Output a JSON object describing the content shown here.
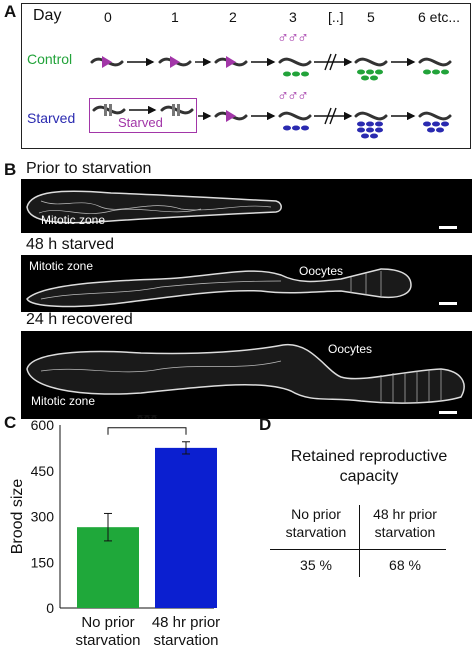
{
  "panel_a": {
    "letter": "A",
    "day_label": "Day",
    "days": [
      "0",
      "1",
      "2",
      "3",
      "[..]",
      "5",
      "6 etc..."
    ],
    "rows": [
      {
        "label": "Control",
        "color": "#22a33a"
      },
      {
        "label": "Starved",
        "color": "#2a2ab0"
      }
    ],
    "starved_box_label": "Starved",
    "accent_color": "#a236a8",
    "male_symbols": "♂♂♂"
  },
  "panel_b": {
    "letter": "B",
    "images": [
      {
        "title": "Prior to starvation",
        "labels": [
          "Mitotic zone"
        ]
      },
      {
        "title": "48 h starved",
        "labels": [
          "Mitotic zone",
          "Oocytes"
        ]
      },
      {
        "title": "24 h recovered",
        "labels": [
          "Oocytes",
          "Mitotic zone"
        ]
      }
    ]
  },
  "panel_c": {
    "letter": "C",
    "significance": "***",
    "chart_data": {
      "type": "bar",
      "categories": [
        "No prior starvation",
        "48 hr prior starvation"
      ],
      "category_lines": [
        [
          "No prior",
          "starvation"
        ],
        [
          "48 hr prior",
          "starvation"
        ]
      ],
      "values": [
        265,
        525
      ],
      "errors": [
        45,
        20
      ],
      "colors": [
        "#1fa83a",
        "#0b1fd0"
      ],
      "ylabel": "Brood size",
      "ylim": [
        0,
        600
      ],
      "yticks": [
        0,
        150,
        300,
        450,
        600
      ]
    }
  },
  "panel_d": {
    "letter": "D",
    "title_lines": [
      "Retained reproductive",
      "capacity"
    ],
    "headers": [
      [
        "No prior",
        "starvation"
      ],
      [
        "48 hr prior",
        "starvation"
      ]
    ],
    "values": [
      "35 %",
      "68 %"
    ]
  }
}
